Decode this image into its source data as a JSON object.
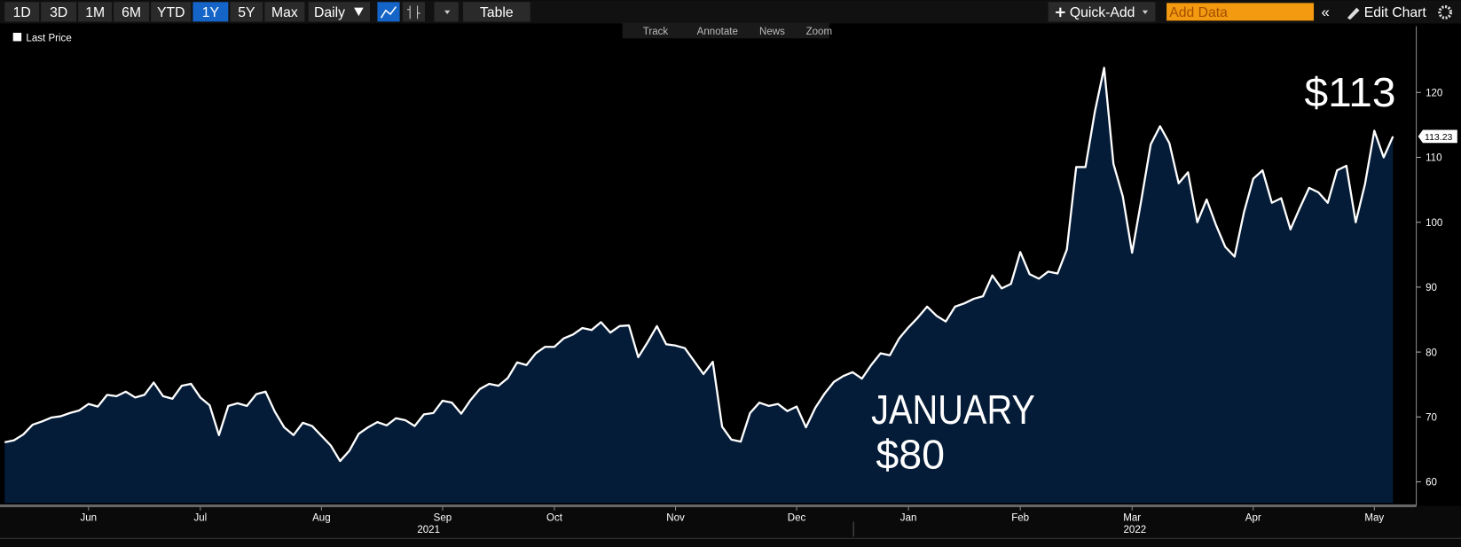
{
  "toolbar": {
    "ranges": [
      "1D",
      "3D",
      "1M",
      "6M",
      "YTD",
      "1Y",
      "5Y",
      "Max"
    ],
    "active_range": 5,
    "frequency": "Daily",
    "table": "Table",
    "quick_add": "Quick-Add",
    "add_data": "Add Data",
    "edit_chart": "Edit Chart"
  },
  "chart_tools": [
    "Track",
    "Annotate",
    "News",
    "Zoom"
  ],
  "chart_data": {
    "type": "area",
    "series": [
      {
        "name": "Last Price",
        "color": "#ffffff",
        "fill": "#041c38",
        "values": [
          66.1,
          66.4,
          67.3,
          68.8,
          69.3,
          69.9,
          70.1,
          70.6,
          71.0,
          72.0,
          71.6,
          73.4,
          73.2,
          73.9,
          73.0,
          73.4,
          75.3,
          73.2,
          72.8,
          74.8,
          75.1,
          73.0,
          71.8,
          67.2,
          71.7,
          72.1,
          71.7,
          73.5,
          73.9,
          70.8,
          68.4,
          67.2,
          69.1,
          68.6,
          67.1,
          65.6,
          63.2,
          64.8,
          67.4,
          68.4,
          69.2,
          68.7,
          69.8,
          69.5,
          68.6,
          70.4,
          70.6,
          72.5,
          72.2,
          70.5,
          72.6,
          74.3,
          75.1,
          74.8,
          76.0,
          78.4,
          78.0,
          79.8,
          80.8,
          80.8,
          82.1,
          82.7,
          83.7,
          83.4,
          84.6,
          83.0,
          84.0,
          84.1,
          79.2,
          81.5,
          84.0,
          81.2,
          81.0,
          80.6,
          78.6,
          76.6,
          78.5,
          68.5,
          66.5,
          66.2,
          70.6,
          72.2,
          71.7,
          72.0,
          70.9,
          71.6,
          68.4,
          71.4,
          73.6,
          75.4,
          76.3,
          76.9,
          75.9,
          78.0,
          79.8,
          79.5,
          82.1,
          83.8,
          85.3,
          87.0,
          85.6,
          84.7,
          87.0,
          87.5,
          88.2,
          88.6,
          91.8,
          89.8,
          90.5,
          95.4,
          92.0,
          91.3,
          92.4,
          92.1,
          95.8,
          108.5,
          108.5,
          117.0,
          123.8,
          109.0,
          104.0,
          95.3,
          103.5,
          112.0,
          114.8,
          112.2,
          106.0,
          107.7,
          100.0,
          103.5,
          99.6,
          96.2,
          94.7,
          101.5,
          106.7,
          108.0,
          103.0,
          103.7,
          98.9,
          102.2,
          105.3,
          104.6,
          103.0,
          108.0,
          108.7,
          100.0,
          105.9,
          114.1,
          110.0,
          113.23
        ]
      }
    ],
    "categories": [
      null,
      null,
      null,
      null,
      null,
      null,
      null,
      null,
      null,
      "Jun",
      null,
      null,
      null,
      null,
      null,
      null,
      null,
      null,
      null,
      null,
      null,
      "Jul",
      null,
      null,
      null,
      null,
      null,
      null,
      null,
      null,
      null,
      null,
      null,
      null,
      "Aug",
      null,
      null,
      null,
      null,
      null,
      null,
      null,
      null,
      null,
      null,
      null,
      null,
      "Sep",
      null,
      null,
      null,
      null,
      null,
      null,
      null,
      null,
      null,
      null,
      null,
      "Oct",
      null,
      null,
      null,
      null,
      null,
      null,
      null,
      null,
      null,
      null,
      null,
      null,
      "Nov",
      null,
      null,
      null,
      null,
      null,
      null,
      null,
      null,
      null,
      null,
      null,
      null,
      "Dec",
      null,
      null,
      null,
      null,
      null,
      null,
      null,
      null,
      null,
      null,
      null,
      "Jan",
      null,
      null,
      null,
      null,
      null,
      null,
      null,
      null,
      null,
      null,
      null,
      "Feb",
      null,
      null,
      null,
      null,
      null,
      null,
      null,
      null,
      null,
      null,
      null,
      "Mar",
      null,
      null,
      null,
      null,
      null,
      null,
      null,
      null,
      null,
      null,
      null,
      null,
      "Apr",
      null,
      null,
      null,
      null,
      null,
      null,
      null,
      null,
      null,
      null,
      null,
      null,
      "May",
      null,
      null
    ],
    "x_group_labels": [
      "2021",
      "2022"
    ],
    "ylim": [
      56.3,
      130.2
    ],
    "yticks": [
      60,
      70,
      80,
      90,
      100,
      110,
      120
    ],
    "annotations": [
      "JANUARY",
      "$80",
      "$113"
    ]
  }
}
